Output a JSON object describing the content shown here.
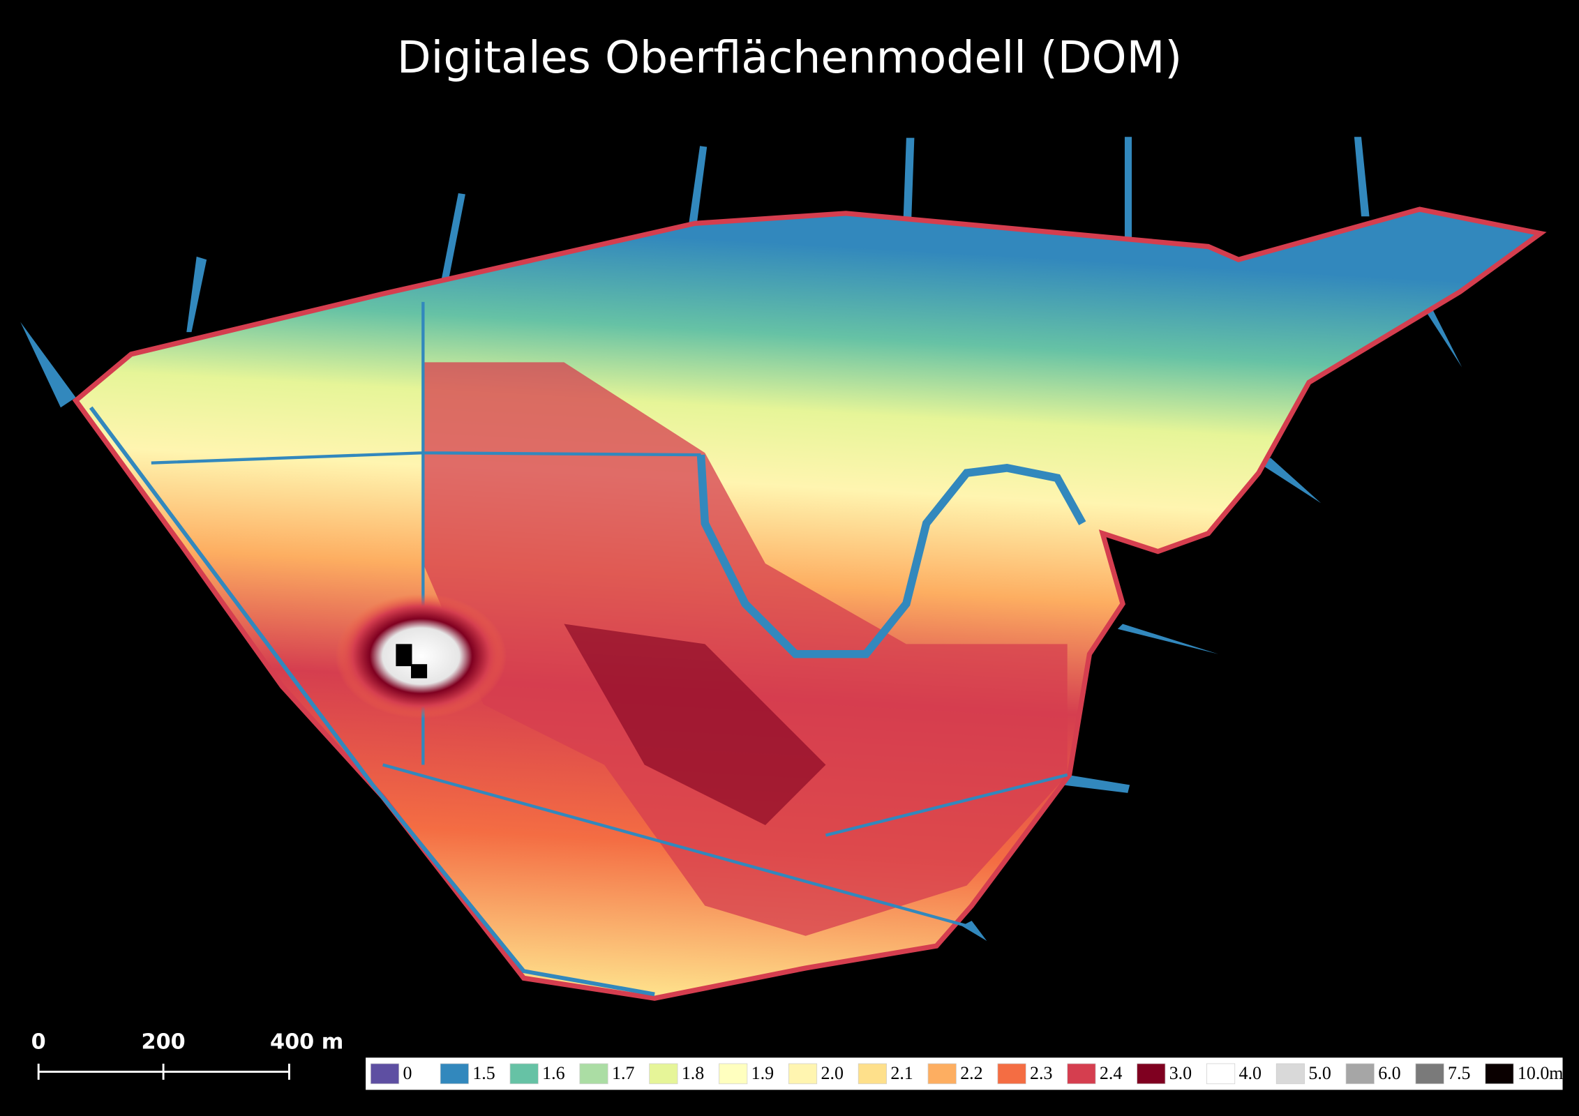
{
  "title": "Digitales Oberflächenmodell (DOM)",
  "scale_bar": {
    "labels": [
      "0",
      "200",
      "400 m"
    ]
  },
  "legend": {
    "items": [
      {
        "label": "0",
        "color": "#5e4fa2"
      },
      {
        "label": "1.5",
        "color": "#3288bd"
      },
      {
        "label": "1.6",
        "color": "#66c2a5"
      },
      {
        "label": "1.7",
        "color": "#abdda4"
      },
      {
        "label": "1.8",
        "color": "#e6f598"
      },
      {
        "label": "1.9",
        "color": "#ffffbf"
      },
      {
        "label": "2.0",
        "color": "#fff5b0"
      },
      {
        "label": "2.1",
        "color": "#fee08b"
      },
      {
        "label": "2.2",
        "color": "#fdae61"
      },
      {
        "label": "2.3",
        "color": "#f46d43"
      },
      {
        "label": "2.4",
        "color": "#d53e4f"
      },
      {
        "label": "3.0",
        "color": "#7f0020"
      },
      {
        "label": "4.0",
        "color": "#ffffff"
      },
      {
        "label": "5.0",
        "color": "#d9d9d9"
      },
      {
        "label": "6.0",
        "color": "#a6a6a6"
      },
      {
        "label": "7.5",
        "color": "#7a7a7a"
      },
      {
        "label": "10.0m",
        "color": "#0a0000"
      }
    ]
  }
}
